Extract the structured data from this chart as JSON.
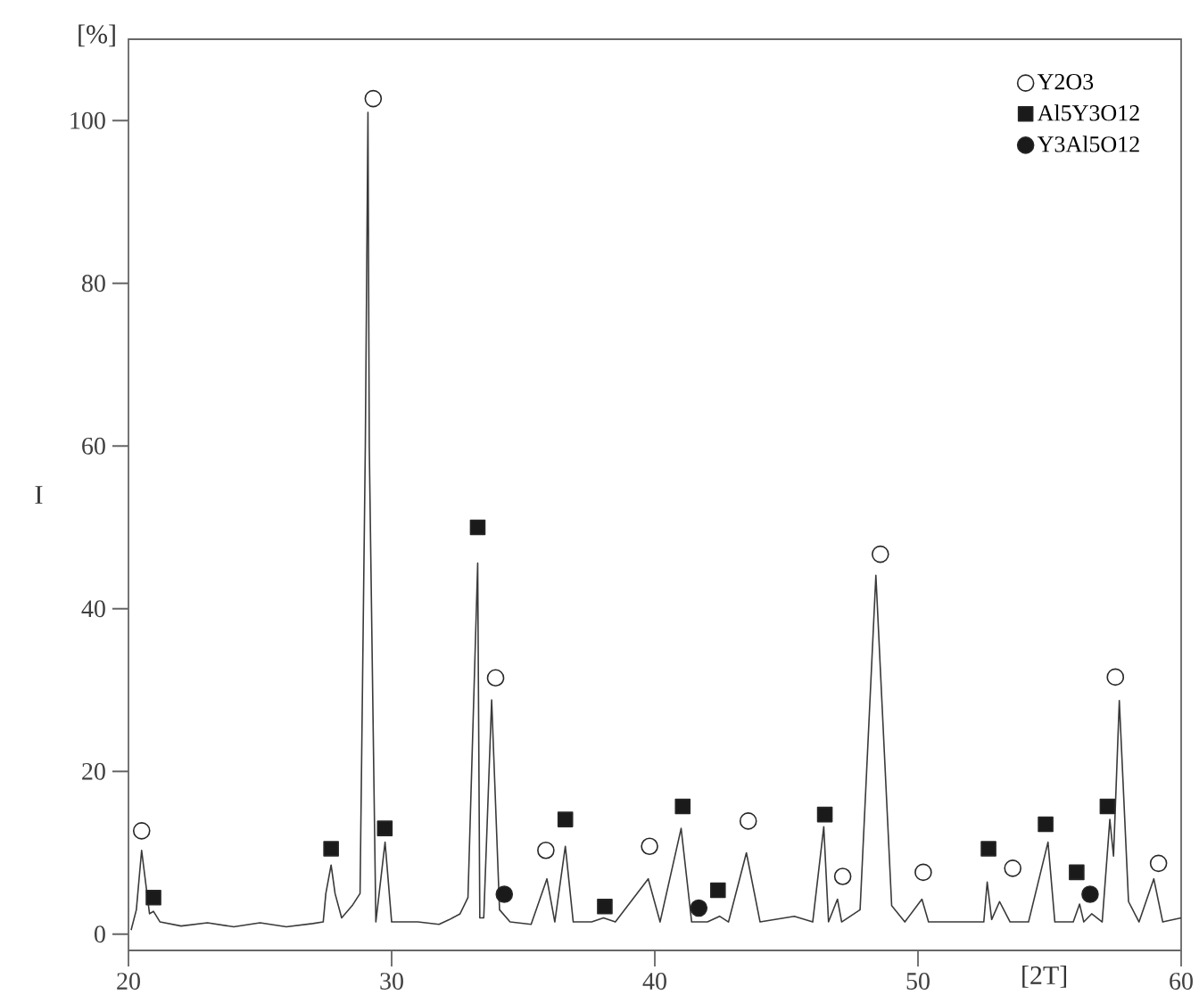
{
  "chart_data": {
    "type": "line",
    "xlabel": "[2T]",
    "ylabel": "I",
    "annotations": [
      "[%]"
    ],
    "xlim": [
      20,
      60
    ],
    "ylim": [
      -2,
      110
    ],
    "xticks": [
      20,
      30,
      40,
      50,
      60
    ],
    "yticks": [
      0,
      20,
      40,
      60,
      80,
      100
    ],
    "grid": false,
    "legend": "top right",
    "series": [
      {
        "color": "#3a3a3a",
        "marker": "none",
        "x": [
          20.1,
          20.3,
          20.5,
          20.8,
          20.95,
          21.2,
          22,
          23,
          24,
          25,
          26,
          27,
          27.4,
          27.5,
          27.7,
          27.85,
          28.1,
          28.5,
          28.8,
          29.0,
          29.1,
          29.15,
          29.4,
          29.75,
          30.0,
          31,
          31.8,
          32.2,
          32.6,
          32.9,
          33.27,
          33.35,
          33.5,
          33.8,
          34.1,
          34.5,
          35.3,
          35.9,
          36.2,
          36.6,
          36.9,
          37.6,
          38.05,
          38.5,
          39.75,
          40.2,
          41.0,
          41.4,
          41.7,
          42.0,
          42.46,
          42.8,
          43.48,
          44.0,
          45.3,
          46.0,
          46.42,
          46.6,
          46.94,
          47.1,
          47.8,
          48.4,
          49.0,
          49.5,
          50.15,
          50.4,
          52.5,
          52.63,
          52.8,
          53.1,
          53.5,
          54.2,
          54.94,
          55.2,
          55.9,
          56.14,
          56.3,
          56.6,
          57.0,
          57.29,
          57.43,
          57.65,
          58.0,
          58.4,
          58.96,
          59.3,
          60
        ],
        "values": [
          0.5,
          3,
          10.3,
          2.5,
          2.8,
          1.5,
          1.0,
          1.4,
          0.9,
          1.4,
          0.9,
          1.3,
          1.5,
          5,
          8.5,
          5,
          2,
          3.5,
          5,
          60,
          101,
          60,
          1.5,
          11.3,
          1.5,
          1.5,
          1.2,
          1.8,
          2.5,
          4.5,
          45.6,
          2,
          2,
          28.8,
          3,
          1.5,
          1.2,
          6.8,
          1.5,
          10.8,
          1.5,
          1.5,
          2.0,
          1.5,
          6.8,
          1.5,
          13.0,
          1.5,
          1.5,
          1.5,
          2.2,
          1.5,
          10.0,
          1.5,
          2.2,
          1.5,
          13.2,
          1.5,
          4.3,
          1.5,
          3,
          44.1,
          3.5,
          1.5,
          4.3,
          1.5,
          1.5,
          6.4,
          1.8,
          4,
          1.5,
          1.5,
          11.3,
          1.5,
          1.5,
          3.7,
          1.5,
          2.5,
          1.5,
          14.1,
          9.6,
          28.7,
          4,
          1.5,
          6.8,
          1.5,
          2
        ]
      },
      {
        "type": "scatter",
        "name": "Y2O3",
        "color": "#ffffff",
        "marker": "circle",
        "x": [
          20.5,
          29.3,
          33.95,
          35.86,
          39.8,
          43.55,
          47.14,
          48.57,
          50.2,
          53.6,
          57.5,
          59.14
        ],
        "values": [
          12.7,
          102.7,
          31.5,
          10.3,
          10.8,
          13.9,
          7.1,
          46.7,
          7.6,
          8.1,
          31.6,
          8.7
        ]
      },
      {
        "type": "scatter",
        "name": "Al5Y3O12",
        "color": "#1a1a1a",
        "marker": "square",
        "x": [
          20.95,
          27.7,
          29.74,
          33.27,
          36.6,
          38.1,
          41.06,
          42.4,
          46.46,
          52.68,
          54.85,
          56.03,
          57.2
        ],
        "values": [
          4.5,
          10.5,
          13.0,
          50.0,
          14.1,
          3.4,
          15.7,
          5.4,
          14.7,
          10.5,
          13.5,
          7.6,
          15.7
        ]
      },
      {
        "type": "scatter",
        "name": "Y3Al5O12",
        "color": "#1a1a1a",
        "marker": "circle",
        "x": [
          34.28,
          41.67,
          56.54
        ],
        "values": [
          4.9,
          3.2,
          4.9
        ]
      }
    ]
  }
}
